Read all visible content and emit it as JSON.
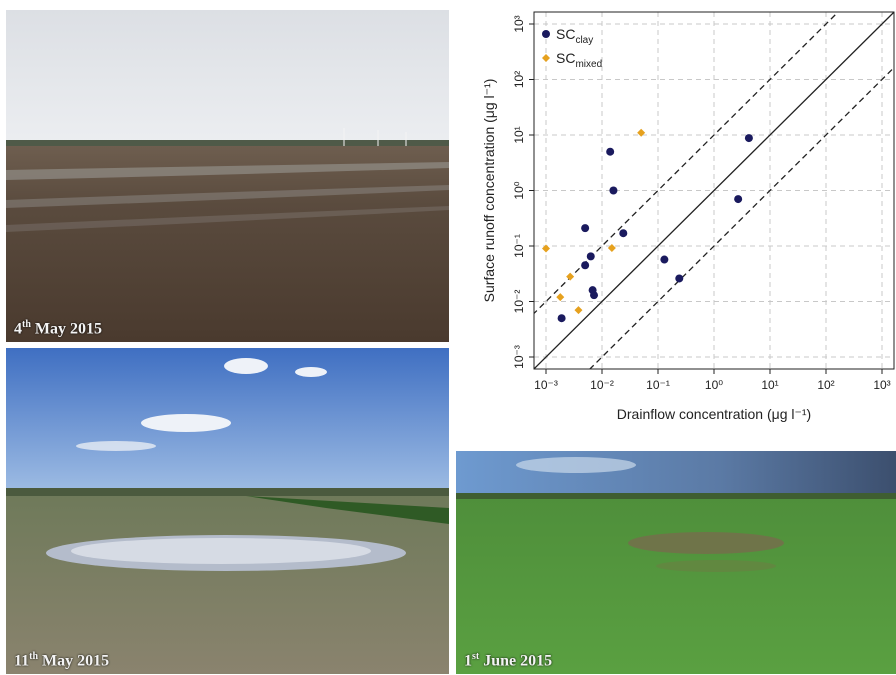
{
  "photos": [
    {
      "date_day": "4",
      "date_suffix": "th",
      "date_rest": " May 2015"
    },
    {
      "date_day": "11",
      "date_suffix": "th",
      "date_rest": " May 2015"
    },
    {
      "date_day": "1",
      "date_suffix": "st",
      "date_rest": " June 2015"
    }
  ],
  "chart_data": {
    "type": "scatter",
    "scale": "log-log",
    "xlabel": "Drainflow concentration (μg l⁻¹)",
    "ylabel": "Surface runoff concentration (μg l⁻¹)",
    "xlim": [
      0.001,
      1000
    ],
    "ylim": [
      0.001,
      1000
    ],
    "x_ticks": [
      "10⁻³",
      "10⁻²",
      "10⁻¹",
      "10⁰",
      "10¹",
      "10²",
      "10³"
    ],
    "y_ticks": [
      "10⁻³",
      "10⁻²",
      "10⁻¹",
      "10⁰",
      "10¹",
      "10²",
      "10³"
    ],
    "grid": true,
    "legend_position": "top-left",
    "reference_lines": [
      {
        "type": "1:1",
        "style": "solid",
        "offset_log10": 0
      },
      {
        "type": "10:1",
        "style": "dashed",
        "offset_log10": 1
      },
      {
        "type": "1:10",
        "style": "dashed",
        "offset_log10": -1
      }
    ],
    "series": [
      {
        "name": "SC",
        "name_sub": "clay",
        "marker": "circle",
        "color": "#1a1a5e",
        "points": [
          {
            "x": 0.0019,
            "y": 0.005
          },
          {
            "x": 0.005,
            "y": 0.21
          },
          {
            "x": 0.005,
            "y": 0.045
          },
          {
            "x": 0.0063,
            "y": 0.065
          },
          {
            "x": 0.0068,
            "y": 0.016
          },
          {
            "x": 0.0072,
            "y": 0.013
          },
          {
            "x": 0.014,
            "y": 5.0
          },
          {
            "x": 0.016,
            "y": 1.0
          },
          {
            "x": 0.024,
            "y": 0.17
          },
          {
            "x": 0.13,
            "y": 0.057
          },
          {
            "x": 0.24,
            "y": 0.026
          },
          {
            "x": 2.7,
            "y": 0.7
          },
          {
            "x": 4.2,
            "y": 8.8
          }
        ]
      },
      {
        "name": "SC",
        "name_sub": "mixed",
        "marker": "diamond",
        "color": "#e6a11e",
        "points": [
          {
            "x": 0.001,
            "y": 0.09
          },
          {
            "x": 0.0018,
            "y": 0.012
          },
          {
            "x": 0.0027,
            "y": 0.028
          },
          {
            "x": 0.0038,
            "y": 0.007
          },
          {
            "x": 0.015,
            "y": 0.092
          },
          {
            "x": 0.05,
            "y": 11.0
          }
        ]
      }
    ]
  }
}
